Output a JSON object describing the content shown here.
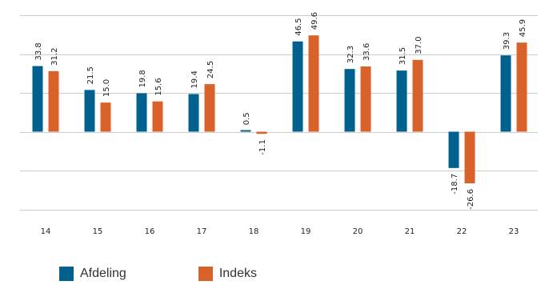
{
  "chart_data": {
    "type": "bar",
    "title": "",
    "xlabel": "",
    "ylabel": "",
    "categories": [
      "14",
      "15",
      "16",
      "17",
      "18",
      "19",
      "20",
      "21",
      "22",
      "23"
    ],
    "series": [
      {
        "name": "Afdeling",
        "color": "#00618f",
        "values": [
          33.8,
          21.5,
          19.8,
          19.4,
          0.5,
          46.5,
          32.3,
          31.5,
          -18.7,
          39.3
        ]
      },
      {
        "name": "Indeks",
        "color": "#d9622b",
        "values": [
          31.2,
          15.0,
          15.6,
          24.5,
          -1.1,
          49.6,
          33.6,
          37.0,
          -26.6,
          45.9
        ]
      }
    ],
    "ylim": [
      -40,
      60
    ],
    "grid": true,
    "legend": "bottom-left"
  }
}
